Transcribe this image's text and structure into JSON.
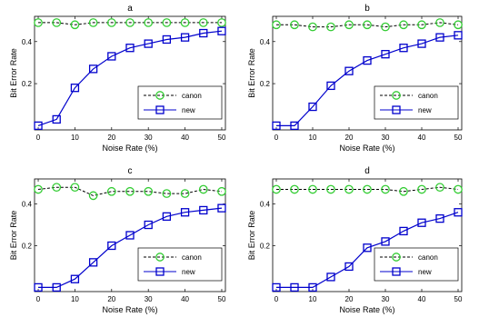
{
  "chart_data": [
    {
      "type": "line",
      "title": "a",
      "xlabel": "Noise Rate (%)",
      "ylabel": "Bit Error Rate",
      "x": [
        0,
        5,
        10,
        15,
        20,
        25,
        30,
        35,
        40,
        45,
        50
      ],
      "xlim": [
        -1,
        51
      ],
      "ylim": [
        -0.02,
        0.52
      ],
      "xticks": [
        "0",
        "10",
        "20",
        "30",
        "40",
        "50"
      ],
      "yticks": [
        "0.2",
        "0.4"
      ],
      "legend": "lower-right",
      "grid": false,
      "series": [
        {
          "name": "canon",
          "color": "#33cc33",
          "marker": "circle",
          "dash": true,
          "values": [
            0.49,
            0.49,
            0.48,
            0.49,
            0.49,
            0.49,
            0.49,
            0.49,
            0.49,
            0.49,
            0.49
          ]
        },
        {
          "name": "new",
          "color": "#0000cc",
          "marker": "square",
          "dash": false,
          "values": [
            0.0,
            0.03,
            0.18,
            0.27,
            0.33,
            0.37,
            0.39,
            0.41,
            0.42,
            0.44,
            0.45
          ]
        }
      ]
    },
    {
      "type": "line",
      "title": "b",
      "xlabel": "Noise Rate (%)",
      "ylabel": "Bit Error Rate",
      "x": [
        0,
        5,
        10,
        15,
        20,
        25,
        30,
        35,
        40,
        45,
        50
      ],
      "xlim": [
        -1,
        51
      ],
      "ylim": [
        -0.02,
        0.52
      ],
      "xticks": [
        "0",
        "10",
        "20",
        "30",
        "40",
        "50"
      ],
      "yticks": [
        "0.2",
        "0.4"
      ],
      "legend": "lower-right",
      "grid": false,
      "series": [
        {
          "name": "canon",
          "color": "#33cc33",
          "marker": "circle",
          "dash": true,
          "values": [
            0.48,
            0.48,
            0.47,
            0.47,
            0.48,
            0.48,
            0.47,
            0.48,
            0.48,
            0.49,
            0.48
          ]
        },
        {
          "name": "new",
          "color": "#0000cc",
          "marker": "square",
          "dash": false,
          "values": [
            0.0,
            0.0,
            0.09,
            0.19,
            0.26,
            0.31,
            0.34,
            0.37,
            0.39,
            0.42,
            0.43
          ]
        }
      ]
    },
    {
      "type": "line",
      "title": "c",
      "xlabel": "Noise Rate (%)",
      "ylabel": "Bit Error Rate",
      "x": [
        0,
        5,
        10,
        15,
        20,
        25,
        30,
        35,
        40,
        45,
        50
      ],
      "xlim": [
        -1,
        51
      ],
      "ylim": [
        -0.02,
        0.52
      ],
      "xticks": [
        "0",
        "10",
        "20",
        "30",
        "40",
        "50"
      ],
      "yticks": [
        "0.2",
        "0.4"
      ],
      "legend": "lower-right",
      "grid": false,
      "series": [
        {
          "name": "canon",
          "color": "#33cc33",
          "marker": "circle",
          "dash": true,
          "values": [
            0.47,
            0.48,
            0.48,
            0.44,
            0.46,
            0.46,
            0.46,
            0.45,
            0.45,
            0.47,
            0.46
          ]
        },
        {
          "name": "new",
          "color": "#0000cc",
          "marker": "square",
          "dash": false,
          "values": [
            0.0,
            0.0,
            0.04,
            0.12,
            0.2,
            0.25,
            0.3,
            0.34,
            0.36,
            0.37,
            0.38
          ]
        }
      ]
    },
    {
      "type": "line",
      "title": "d",
      "xlabel": "Noise Rate (%)",
      "ylabel": "Bit Error Rate",
      "x": [
        0,
        5,
        10,
        15,
        20,
        25,
        30,
        35,
        40,
        45,
        50
      ],
      "xlim": [
        -1,
        51
      ],
      "ylim": [
        -0.02,
        0.52
      ],
      "xticks": [
        "0",
        "10",
        "20",
        "30",
        "40",
        "50"
      ],
      "yticks": [
        "0.2",
        "0.4"
      ],
      "legend": "lower-right",
      "grid": false,
      "series": [
        {
          "name": "canon",
          "color": "#33cc33",
          "marker": "circle",
          "dash": true,
          "values": [
            0.47,
            0.47,
            0.47,
            0.47,
            0.47,
            0.47,
            0.47,
            0.46,
            0.47,
            0.48,
            0.47
          ]
        },
        {
          "name": "new",
          "color": "#0000cc",
          "marker": "square",
          "dash": false,
          "values": [
            0.0,
            0.0,
            0.0,
            0.05,
            0.1,
            0.19,
            0.22,
            0.27,
            0.31,
            0.33,
            0.36
          ]
        }
      ]
    }
  ]
}
